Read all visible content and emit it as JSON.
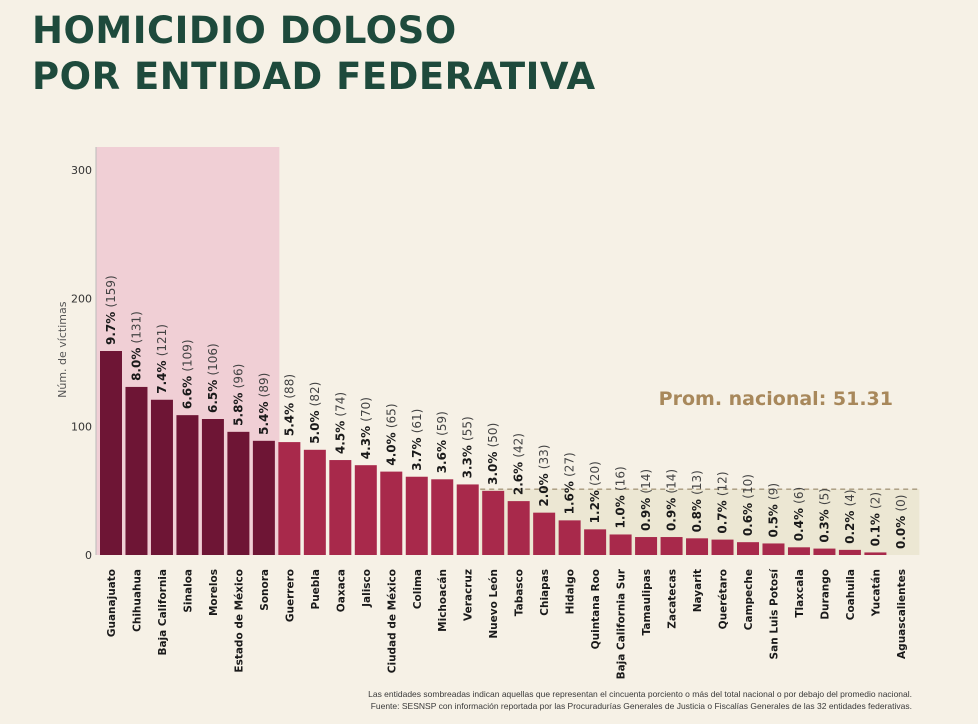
{
  "title": [
    "HOMICIDIO DOLOSO",
    "POR ENTIDAD FEDERATIVA"
  ],
  "footnote": [
    "Las entidades sombreadas indican aquellas que representan el cincuenta porciento o más del total nacional o por debajo del promedio nacional.",
    "Fuente: SESNSP con información reportada por las Procuradurías Generales de Justicia o Fiscalías Generales de las 32 entidades federativas."
  ],
  "colors": {
    "title": "#1e4a3c",
    "top_group_bar": "#6e1535",
    "other_bar": "#a8294b",
    "top_shade": "#f0cfd5",
    "below_avg_shade": "#ece7d3",
    "avg_text": "#a8885b"
  },
  "chart_data": {
    "type": "bar",
    "ylabel": "Núm. de víctimas",
    "ylim": [
      0,
      318
    ],
    "yticks": [
      0,
      100,
      200,
      300
    ],
    "average_label": "Prom. nacional: 51.31",
    "average_value": 51.31,
    "top_group_count": 7,
    "categories": [
      "Guanajuato",
      "Chihuahua",
      "Baja California",
      "Sinaloa",
      "Morelos",
      "Estado de México",
      "Sonora",
      "Guerrero",
      "Puebla",
      "Oaxaca",
      "Jalisco",
      "Ciudad de México",
      "Colima",
      "Michoacán",
      "Veracruz",
      "Nuevo León",
      "Tabasco",
      "Chiapas",
      "Hidalgo",
      "Quintana Roo",
      "Baja California Sur",
      "Tamaulipas",
      "Zacatecas",
      "Nayarit",
      "Querétaro",
      "Campeche",
      "San Luis Potosí",
      "Tlaxcala",
      "Durango",
      "Coahuila",
      "Yucatán",
      "Aguascalientes"
    ],
    "values": [
      159,
      131,
      121,
      109,
      106,
      96,
      89,
      88,
      82,
      74,
      70,
      65,
      61,
      59,
      55,
      50,
      42,
      33,
      27,
      20,
      16,
      14,
      14,
      13,
      12,
      10,
      9,
      6,
      5,
      4,
      2,
      0
    ],
    "percent_labels": [
      "9.7%",
      "8.0%",
      "7.4%",
      "6.6%",
      "6.5%",
      "5.8%",
      "5.4%",
      "5.4%",
      "5.0%",
      "4.5%",
      "4.3%",
      "4.0%",
      "3.7%",
      "3.6%",
      "3.3%",
      "3.0%",
      "2.6%",
      "2.0%",
      "1.6%",
      "1.2%",
      "1.0%",
      "0.9%",
      "0.9%",
      "0.8%",
      "0.7%",
      "0.6%",
      "0.5%",
      "0.4%",
      "0.3%",
      "0.2%",
      "0.1%",
      "0.0%"
    ],
    "count_labels": [
      "(159)",
      "(131)",
      "(121)",
      "(109)",
      "(106)",
      "(96)",
      "(89)",
      "(88)",
      "(82)",
      "(74)",
      "(70)",
      "(65)",
      "(61)",
      "(59)",
      "(55)",
      "(50)",
      "(42)",
      "(33)",
      "(27)",
      "(20)",
      "(16)",
      "(14)",
      "(14)",
      "(13)",
      "(12)",
      "(10)",
      "(9)",
      "(6)",
      "(5)",
      "(4)",
      "(2)",
      "(0)"
    ]
  }
}
